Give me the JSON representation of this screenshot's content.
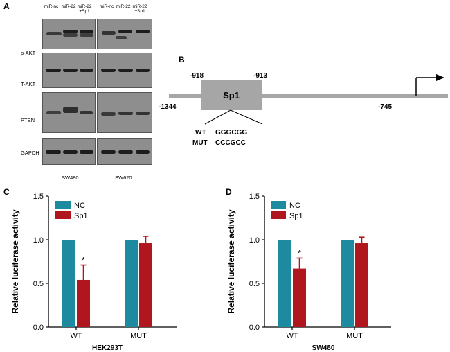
{
  "panel_a": {
    "letter": "A",
    "lanes_left": [
      "miR-nc",
      "miR-22",
      "miR-22\n+Sp1"
    ],
    "lanes_right": [
      "miR-nc",
      "miR-22",
      "miR-22\n+Sp1"
    ],
    "rows": [
      "p-AKT",
      "T-AKT",
      "PTEN",
      "GAPDH"
    ],
    "cell_lines": [
      "SW480",
      "SW620"
    ]
  },
  "panel_b": {
    "letter": "B",
    "pos_start": "-1344",
    "pos_box_left": "-918",
    "pos_box_right": "-913",
    "pos_end": "-745",
    "box_label": "Sp1",
    "seq_rows": [
      {
        "label": "WT",
        "seq": "GGGCGG"
      },
      {
        "label": "MUT",
        "seq": "CCCGCC"
      }
    ]
  },
  "chart_data": [
    {
      "letter": "C",
      "type": "bar",
      "categories": [
        "WT",
        "MUT"
      ],
      "series": [
        {
          "name": "NC",
          "values": [
            1.0,
            1.0
          ],
          "errors": [
            0,
            0
          ],
          "color": "#1e8aa0"
        },
        {
          "name": "Sp1",
          "values": [
            0.54,
            0.96
          ],
          "errors": [
            0.17,
            0.08
          ],
          "color": "#b0161e"
        }
      ],
      "significance": [
        "*",
        ""
      ],
      "ylabel": "Relative luciferase  activity",
      "xlabel": "HEK293T",
      "ylim": [
        0,
        1.5
      ],
      "yticks": [
        "0.0",
        "0.5",
        "1.0",
        "1.5"
      ],
      "legend": "top-right"
    },
    {
      "letter": "D",
      "type": "bar",
      "categories": [
        "WT",
        "MUT"
      ],
      "series": [
        {
          "name": "NC",
          "values": [
            1.0,
            1.0
          ],
          "errors": [
            0,
            0
          ],
          "color": "#1e8aa0"
        },
        {
          "name": "Sp1",
          "values": [
            0.67,
            0.96
          ],
          "errors": [
            0.12,
            0.07
          ],
          "color": "#b0161e"
        }
      ],
      "significance": [
        "*",
        ""
      ],
      "ylabel": "Relative luciferase activity",
      "xlabel": "SW480",
      "ylim": [
        0,
        1.5
      ],
      "yticks": [
        "0.0",
        "0.5",
        "1.0",
        "1.5"
      ],
      "legend": "top-right"
    }
  ]
}
